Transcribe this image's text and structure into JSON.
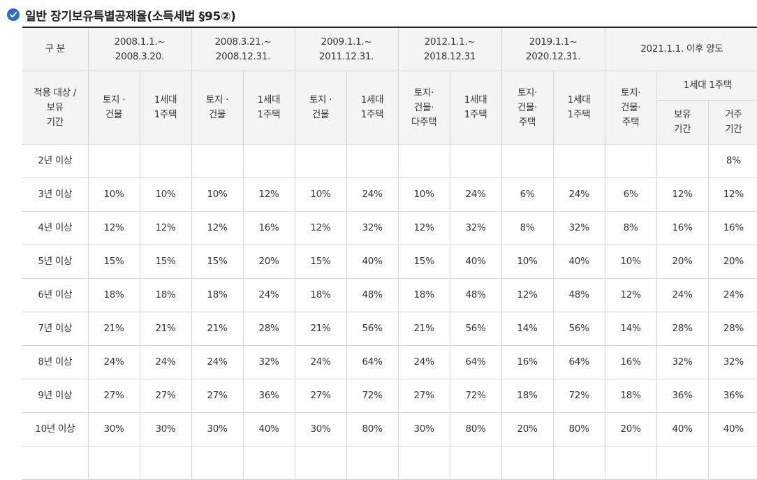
{
  "title": "일반 장기보유특별공제율(소득세법 §95②)",
  "header": {
    "gubun": "구 분",
    "periods": [
      [
        "2008.1.1.~",
        "2008.3.20."
      ],
      [
        "2008.3.21.~",
        "2008.12.31."
      ],
      [
        "2009.1.1.~",
        "2011.12.31."
      ],
      [
        "2012.1.1.~",
        "2018.12.31"
      ],
      [
        "2019.1.1~",
        "2020.12.31."
      ],
      [
        "2021.1.1. 이후 양도"
      ]
    ],
    "target_label": [
      "적용 대상 /",
      "보유",
      "기간"
    ],
    "sub": [
      [
        "토지 ·",
        "건물"
      ],
      [
        "1세대",
        "1주택"
      ],
      [
        "토지 ·",
        "건물"
      ],
      [
        "1세대",
        "1주택"
      ],
      [
        "토지 ·",
        "건물"
      ],
      [
        "1세대",
        "1주택"
      ],
      [
        "토지·",
        "건물·",
        "다주택"
      ],
      [
        "1세대",
        "1주택"
      ],
      [
        "토지·",
        "건물·",
        "주택"
      ],
      [
        "1세대",
        "1주택"
      ],
      [
        "토지·",
        "건물·",
        "주택"
      ]
    ],
    "house_group": "1세대 1주택",
    "house_sub": [
      [
        "보유",
        "기간"
      ],
      [
        "거주",
        "기간"
      ]
    ]
  },
  "rows": [
    {
      "label": "2년 이상",
      "values": [
        "",
        "",
        "",
        "",
        "",
        "",
        "",
        "",
        "",
        "",
        "",
        "",
        "8%"
      ]
    },
    {
      "label": "3년 이상",
      "values": [
        "10%",
        "10%",
        "10%",
        "12%",
        "10%",
        "24%",
        "10%",
        "24%",
        "6%",
        "24%",
        "6%",
        "12%",
        "12%"
      ]
    },
    {
      "label": "4년 이상",
      "values": [
        "12%",
        "12%",
        "12%",
        "16%",
        "12%",
        "32%",
        "12%",
        "32%",
        "8%",
        "32%",
        "8%",
        "16%",
        "16%"
      ]
    },
    {
      "label": "5년 이상",
      "values": [
        "15%",
        "15%",
        "15%",
        "20%",
        "15%",
        "40%",
        "15%",
        "40%",
        "10%",
        "40%",
        "10%",
        "20%",
        "20%"
      ]
    },
    {
      "label": "6년 이상",
      "values": [
        "18%",
        "18%",
        "18%",
        "24%",
        "18%",
        "48%",
        "18%",
        "48%",
        "12%",
        "48%",
        "12%",
        "24%",
        "24%"
      ]
    },
    {
      "label": "7년 이상",
      "values": [
        "21%",
        "21%",
        "21%",
        "28%",
        "21%",
        "56%",
        "21%",
        "56%",
        "14%",
        "56%",
        "14%",
        "28%",
        "28%"
      ]
    },
    {
      "label": "8년 이상",
      "values": [
        "24%",
        "24%",
        "24%",
        "32%",
        "24%",
        "64%",
        "24%",
        "64%",
        "16%",
        "64%",
        "16%",
        "32%",
        "32%"
      ]
    },
    {
      "label": "9년 이상",
      "values": [
        "27%",
        "27%",
        "27%",
        "36%",
        "27%",
        "72%",
        "27%",
        "72%",
        "18%",
        "72%",
        "18%",
        "36%",
        "36%"
      ]
    },
    {
      "label": "10년 이상",
      "values": [
        "30%",
        "30%",
        "30%",
        "40%",
        "30%",
        "80%",
        "30%",
        "80%",
        "20%",
        "80%",
        "20%",
        "40%",
        "40%"
      ]
    },
    {
      "label": "",
      "values": [
        "",
        "",
        "",
        "",
        "",
        "",
        "",
        "",
        "",
        "",
        "",
        "",
        ""
      ]
    }
  ],
  "colors": {
    "accent": "#2a6fd0",
    "header_bg": "#f4f4f4",
    "border": "#d4d4d4"
  }
}
